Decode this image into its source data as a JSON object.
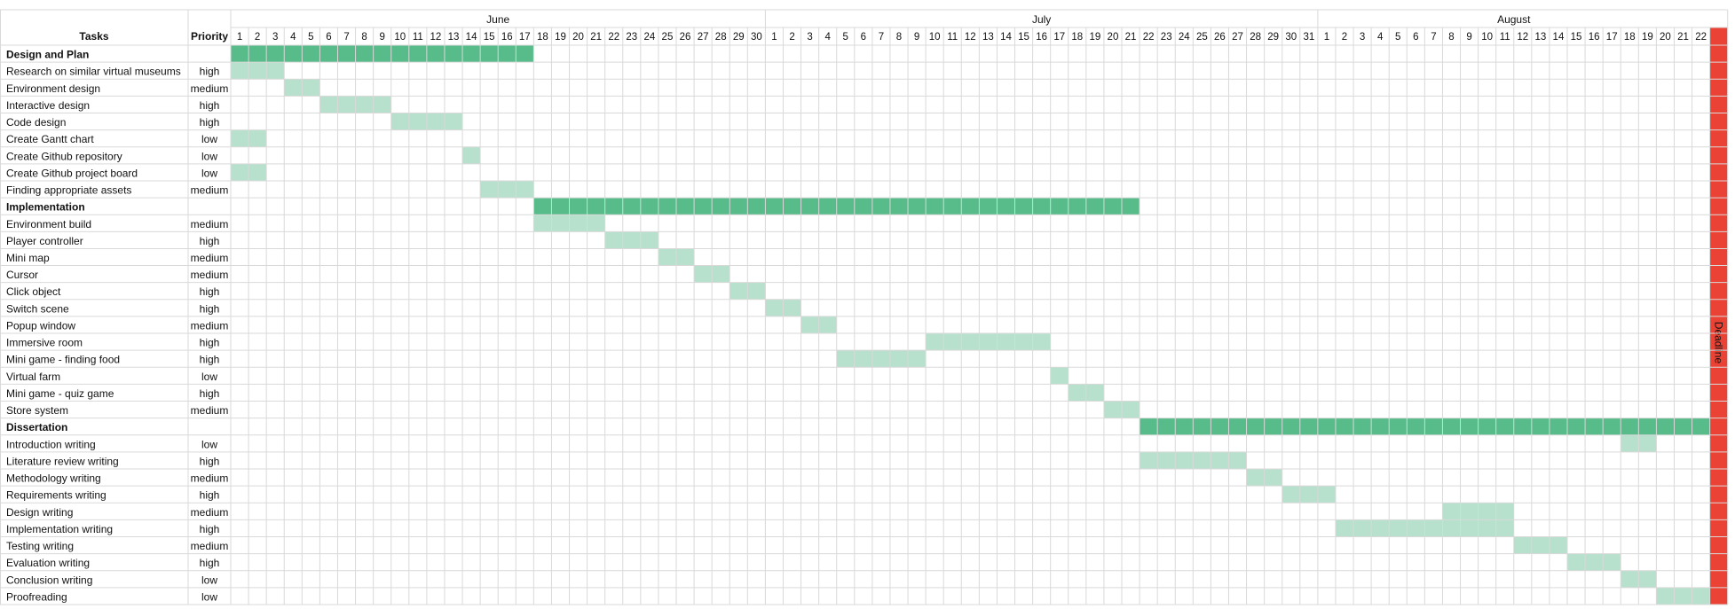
{
  "chart_data": {
    "type": "gantt",
    "headers": {
      "tasks": "Tasks",
      "priority": "Priority"
    },
    "months": [
      {
        "name": "June",
        "days": [
          "1",
          "2",
          "3",
          "4",
          "5",
          "6",
          "7",
          "8",
          "9",
          "10",
          "11",
          "12",
          "13",
          "14",
          "15",
          "16",
          "17",
          "18",
          "19",
          "20",
          "21",
          "22",
          "23",
          "24",
          "25",
          "26",
          "27",
          "28",
          "29",
          "30"
        ]
      },
      {
        "name": "July",
        "days": [
          "1",
          "2",
          "3",
          "4",
          "5",
          "6",
          "7",
          "8",
          "9",
          "10",
          "11",
          "12",
          "13",
          "14",
          "15",
          "16",
          "17",
          "18",
          "19",
          "20",
          "21",
          "22",
          "23",
          "24",
          "25",
          "26",
          "27",
          "28",
          "29",
          "30",
          "31"
        ]
      },
      {
        "name": "August",
        "days": [
          "1",
          "2",
          "3",
          "4",
          "5",
          "6",
          "7",
          "8",
          "9",
          "10",
          "11",
          "12",
          "13",
          "14",
          "15",
          "16",
          "17",
          "18",
          "19",
          "20",
          "21",
          "22"
        ]
      }
    ],
    "rows": [
      {
        "task": "Design and Plan",
        "priority": "",
        "group": true,
        "start": 1,
        "end": 17
      },
      {
        "task": "Research on similar virtual museums",
        "priority": "high",
        "start": 1,
        "end": 3
      },
      {
        "task": "Environment design",
        "priority": "medium",
        "start": 4,
        "end": 5
      },
      {
        "task": "Interactive design",
        "priority": "high",
        "start": 6,
        "end": 9
      },
      {
        "task": "Code design",
        "priority": "high",
        "start": 10,
        "end": 13
      },
      {
        "task": "Create Gantt chart",
        "priority": "low",
        "start": 1,
        "end": 2
      },
      {
        "task": "Create Github repository",
        "priority": "low",
        "start": 14,
        "end": 14
      },
      {
        "task": "Create Github project board",
        "priority": "low",
        "start": 1,
        "end": 2
      },
      {
        "task": "Finding appropriate assets",
        "priority": "medium",
        "start": 15,
        "end": 17
      },
      {
        "task": "Implementation",
        "priority": "",
        "group": true,
        "start": 18,
        "end": 51
      },
      {
        "task": "Environment build",
        "priority": "medium",
        "start": 18,
        "end": 21
      },
      {
        "task": "Player controller",
        "priority": "high",
        "start": 22,
        "end": 24
      },
      {
        "task": "Mini map",
        "priority": "medium",
        "start": 25,
        "end": 26
      },
      {
        "task": "Cursor",
        "priority": "medium",
        "start": 27,
        "end": 28
      },
      {
        "task": "Click object",
        "priority": "high",
        "start": 29,
        "end": 30
      },
      {
        "task": "Switch scene",
        "priority": "high",
        "start": 31,
        "end": 32
      },
      {
        "task": "Popup window",
        "priority": "medium",
        "start": 33,
        "end": 34
      },
      {
        "task": "Immersive room",
        "priority": "high",
        "start": 40,
        "end": 46
      },
      {
        "task": "Mini game - finding food",
        "priority": "high",
        "start": 35,
        "end": 39
      },
      {
        "task": "Virtual farm",
        "priority": "low",
        "start": 47,
        "end": 47
      },
      {
        "task": "Mini game - quiz game",
        "priority": "high",
        "start": 48,
        "end": 49
      },
      {
        "task": "Store system",
        "priority": "medium",
        "start": 50,
        "end": 51
      },
      {
        "task": "Dissertation",
        "priority": "",
        "group": true,
        "start": 52,
        "end": 83
      },
      {
        "task": "Introduction writing",
        "priority": "low",
        "start": 79,
        "end": 80
      },
      {
        "task": "Literature review writing",
        "priority": "high",
        "start": 52,
        "end": 57
      },
      {
        "task": "Methodology writing",
        "priority": "medium",
        "start": 58,
        "end": 59
      },
      {
        "task": "Requirements writing",
        "priority": "high",
        "start": 60,
        "end": 62
      },
      {
        "task": "Design writing",
        "priority": "medium",
        "start": 69,
        "end": 72
      },
      {
        "task": "Implementation writing",
        "priority": "high",
        "start": 63,
        "end": 72
      },
      {
        "task": "Testing writing",
        "priority": "medium",
        "start": 73,
        "end": 75
      },
      {
        "task": "Evaluation writing",
        "priority": "high",
        "start": 76,
        "end": 78
      },
      {
        "task": "Conclusion writing",
        "priority": "low",
        "start": 79,
        "end": 80
      },
      {
        "task": "Proofreading",
        "priority": "low",
        "start": 81,
        "end": 83
      }
    ],
    "deadline": {
      "label": "Deadline",
      "day_index": 84
    },
    "colors": {
      "group_bar": "#57bb8a",
      "task_bar": "#b7e1cd",
      "deadline": "#ea4335",
      "grid": "#d9d9d9"
    }
  }
}
